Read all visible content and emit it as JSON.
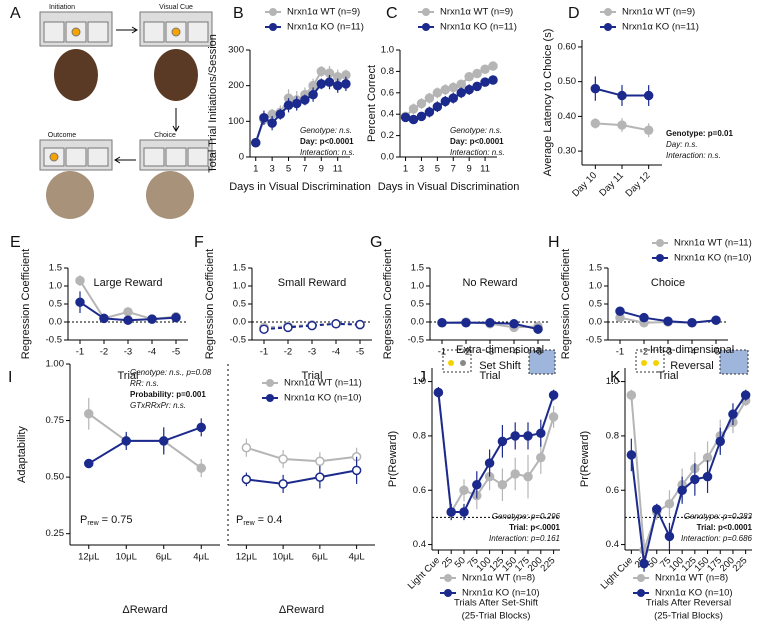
{
  "diagram": {
    "panel": "A",
    "labels": [
      "Initiation",
      "Visual Cue",
      "Outcome",
      "Choice"
    ]
  },
  "chart_data": [
    {
      "type": "line",
      "panel": "B",
      "ylabel": "Total Trial Initiations/Session",
      "xlabel": "Days in Visual Discrimination",
      "x": [
        1,
        2,
        3,
        4,
        5,
        6,
        7,
        8,
        9,
        10,
        11,
        12
      ],
      "xlim": [
        0.3,
        12.5
      ],
      "xticks": [
        1,
        3,
        5,
        7,
        9,
        11
      ],
      "ylim": [
        0,
        300
      ],
      "yticks": [
        0,
        100,
        200,
        300
      ],
      "series": [
        {
          "name": "Nrxn1α WT (n=9)",
          "color": "#b5b5b5",
          "values": [
            40,
            105,
            120,
            125,
            165,
            160,
            175,
            200,
            240,
            235,
            225,
            230
          ],
          "errors": [
            8,
            15,
            15,
            20,
            25,
            25,
            20,
            20,
            15,
            20,
            20,
            15
          ]
        },
        {
          "name": "Nrxn1α KO (n=11)",
          "color": "#1b2a8c",
          "values": [
            40,
            110,
            95,
            120,
            145,
            150,
            160,
            175,
            205,
            210,
            200,
            205
          ],
          "errors": [
            8,
            20,
            20,
            15,
            20,
            20,
            15,
            20,
            15,
            20,
            20,
            20
          ]
        }
      ],
      "stats": [
        {
          "text": "Genotype: n.s."
        },
        {
          "text": "Day: p<0.0001",
          "bold": true
        },
        {
          "text": "Interaction: n.s."
        }
      ]
    },
    {
      "type": "line",
      "panel": "C",
      "ylabel": "Percent Correct",
      "xlabel": "Days in Visual Discrimination",
      "x": [
        1,
        2,
        3,
        4,
        5,
        6,
        7,
        8,
        9,
        10,
        11,
        12
      ],
      "xlim": [
        0.3,
        12.5
      ],
      "xticks": [
        1,
        3,
        5,
        7,
        9,
        11
      ],
      "ylim": [
        0,
        1
      ],
      "yticks": [
        {
          "value": 0,
          "label": "0.0"
        },
        0.2,
        0.4,
        0.6,
        0.8,
        {
          "value": 1,
          "label": "1.0"
        }
      ],
      "series": [
        {
          "name": "Nrxn1α WT (n=9)",
          "color": "#b5b5b5",
          "values": [
            0.38,
            0.45,
            0.5,
            0.55,
            0.6,
            0.63,
            0.65,
            0.68,
            0.75,
            0.78,
            0.82,
            0.85
          ],
          "errors": [
            0.04,
            0.05,
            0.05,
            0.05,
            0.05,
            0.05,
            0.05,
            0.04,
            0.04,
            0.03,
            0.03,
            0.02
          ]
        },
        {
          "name": "Nrxn1α KO (n=11)",
          "color": "#1b2a8c",
          "values": [
            0.37,
            0.35,
            0.38,
            0.42,
            0.47,
            0.52,
            0.55,
            0.6,
            0.63,
            0.66,
            0.7,
            0.72
          ],
          "errors": [
            0.04,
            0.04,
            0.04,
            0.05,
            0.05,
            0.05,
            0.05,
            0.05,
            0.05,
            0.04,
            0.04,
            0.04
          ]
        }
      ],
      "stats": [
        {
          "text": "Genotype: n.s."
        },
        {
          "text": "Day: p<0.0001",
          "bold": true
        },
        {
          "text": "Interaction: n.s."
        }
      ]
    },
    {
      "type": "line",
      "panel": "D",
      "ylabel": "Average Latency to Choice (s)",
      "categories": [
        "Day 10",
        "Day 11",
        "Day 12"
      ],
      "rotated_xlabels": true,
      "ylim": [
        0.26,
        0.62
      ],
      "yticks": [
        {
          "value": 0.3,
          "label": "0.30"
        },
        {
          "value": 0.4,
          "label": "0.40"
        },
        {
          "value": 0.5,
          "label": "0.50"
        },
        {
          "value": 0.6,
          "label": "0.60"
        }
      ],
      "series": [
        {
          "name": "Nrxn1α WT (n=9)",
          "color": "#b5b5b5",
          "values": [
            0.38,
            0.375,
            0.36
          ],
          "errors": [
            0.015,
            0.02,
            0.02
          ]
        },
        {
          "name": "Nrxn1α KO (n=11)",
          "color": "#1b2a8c",
          "values": [
            0.48,
            0.46,
            0.46
          ],
          "errors": [
            0.035,
            0.03,
            0.03
          ]
        }
      ],
      "stats": [
        {
          "text": "Genotype: p=0.01",
          "bold": true
        },
        {
          "text": "Day: n.s."
        },
        {
          "text": "Interaction: n.s."
        }
      ]
    },
    {
      "type": "line",
      "panel": "E",
      "title": "Large Reward",
      "ylabel": "Regression Coefficient",
      "xlabel": "Trial",
      "categories": [
        "-1",
        "-2",
        "-3",
        "-4",
        "-5"
      ],
      "ylim": [
        -0.5,
        1.5
      ],
      "yticks": [
        -0.5,
        {
          "value": 0,
          "label": "0.0"
        },
        0.5,
        {
          "value": 1,
          "label": "1.0"
        },
        1.5
      ],
      "ref_line": 0,
      "series": [
        {
          "color": "#b5b5b5",
          "values": [
            1.15,
            0.1,
            0.28,
            0.08,
            0.15
          ],
          "errors": [
            0.15,
            0.05,
            0.08,
            0.05,
            0.05
          ]
        },
        {
          "color": "#1b2a8c",
          "values": [
            0.55,
            0.1,
            0.05,
            0.08,
            0.12
          ],
          "errors": [
            0.3,
            0.05,
            0.05,
            0.05,
            0.05
          ]
        }
      ]
    },
    {
      "type": "line",
      "panel": "F",
      "title": "Small Reward",
      "ylabel": "Regression Coefficient",
      "xlabel": "Trial",
      "categories": [
        "-1",
        "-2",
        "-3",
        "-4",
        "-5"
      ],
      "ylim": [
        -0.5,
        1.5
      ],
      "yticks": [
        -0.5,
        {
          "value": 0,
          "label": "0.0"
        },
        0.5,
        {
          "value": 1,
          "label": "1.0"
        },
        1.5
      ],
      "ref_line": 0,
      "line_style": "dashed",
      "marker": "open",
      "series": [
        {
          "color": "#b5b5b5",
          "values": [
            -0.15,
            -0.12,
            -0.08,
            -0.05,
            -0.08
          ],
          "errors": [
            0.05,
            0.05,
            0.05,
            0.04,
            0.04
          ]
        },
        {
          "color": "#1b2a8c",
          "values": [
            -0.2,
            -0.15,
            -0.1,
            -0.05,
            -0.07
          ],
          "errors": [
            0.05,
            0.05,
            0.05,
            0.04,
            0.04
          ]
        }
      ]
    },
    {
      "type": "line",
      "panel": "G",
      "title": "No Reward",
      "ylabel": "Regression Coefficient",
      "xlabel": "Trial",
      "categories": [
        "-1",
        "-2",
        "-3",
        "-4",
        "-5"
      ],
      "ylim": [
        -0.5,
        1.5
      ],
      "yticks": [
        -0.5,
        {
          "value": 0,
          "label": "0.0"
        },
        0.5,
        {
          "value": 1,
          "label": "1.0"
        },
        1.5
      ],
      "ref_line": 0,
      "series": [
        {
          "color": "#b5b5b5",
          "values": [
            -0.02,
            0.0,
            -0.05,
            -0.15,
            -0.12
          ],
          "errors": [
            0.05,
            0.05,
            0.05,
            0.06,
            0.05
          ]
        },
        {
          "color": "#1b2a8c",
          "values": [
            -0.02,
            -0.02,
            -0.02,
            -0.05,
            -0.2
          ],
          "errors": [
            0.04,
            0.04,
            0.04,
            0.05,
            0.06
          ]
        }
      ]
    },
    {
      "type": "line",
      "panel": "H",
      "title": "Choice",
      "ylabel": "Regression Coefficient",
      "xlabel": "Trial",
      "categories": [
        "-1",
        "-2",
        "-3",
        "-4",
        "-5"
      ],
      "ylim": [
        -0.5,
        1.5
      ],
      "yticks": [
        -0.5,
        {
          "value": 0,
          "label": "0.0"
        },
        0.5,
        {
          "value": 1,
          "label": "1.0"
        },
        1.5
      ],
      "ref_line": 0,
      "series": [
        {
          "name": "Nrxn1α WT (n=11)",
          "color": "#b5b5b5",
          "values": [
            0.12,
            -0.02,
            0.0,
            -0.02,
            0.05
          ],
          "errors": [
            0.05,
            0.04,
            0.04,
            0.04,
            0.03
          ]
        },
        {
          "name": "Nrxn1α KO (n=10)",
          "color": "#1b2a8c",
          "values": [
            0.3,
            0.12,
            0.02,
            -0.02,
            0.05
          ],
          "errors": [
            0.08,
            0.04,
            0.04,
            0.04,
            0.03
          ]
        }
      ]
    },
    {
      "type": "line",
      "panel": "I",
      "ylabel": "Adaptability",
      "xlabel": "ΔReward",
      "categories": [
        "12μL",
        "10μL",
        "6μL",
        "4μL"
      ],
      "ylim": [
        0.2,
        1.0
      ],
      "yticks": [
        0.25,
        {
          "value": 0.5,
          "label": "0.50"
        },
        0.75,
        {
          "value": 1,
          "label": "1.00"
        }
      ],
      "prob": [
        "P",
        "rew",
        "= 0.75"
      ],
      "series": [
        {
          "name": "Nrxn1α WT (n=11)",
          "color": "#b5b5b5",
          "values": [
            0.78,
            0.66,
            0.66,
            0.54
          ],
          "errors": [
            0.07,
            0.03,
            0.05,
            0.04
          ]
        },
        {
          "name": "Nrxn1α KO (n=10)",
          "color": "#1b2a8c",
          "values": [
            0.56,
            0.66,
            0.66,
            0.72
          ],
          "errors": [
            0.02,
            0.04,
            0.06,
            0.04
          ]
        }
      ],
      "stats": [
        {
          "text": "Genotype: n.s., p=0.08"
        },
        {
          "text": "RR: n.s."
        },
        {
          "text": "Probability: p=0.001",
          "bold": true
        },
        {
          "text": "GTxRRxPr: n.s."
        }
      ]
    },
    {
      "type": "line",
      "xlabel": "ΔReward",
      "categories": [
        "12μL",
        "10μL",
        "6μL",
        "4μL"
      ],
      "ylim": [
        0.2,
        1.0
      ],
      "marker": "open",
      "prob": [
        "P",
        "rew",
        "= 0.4"
      ],
      "series": [
        {
          "color": "#b5b5b5",
          "values": [
            0.63,
            0.58,
            0.57,
            0.59
          ],
          "errors": [
            0.04,
            0.04,
            0.04,
            0.04
          ]
        },
        {
          "color": "#1b2a8c",
          "values": [
            0.49,
            0.47,
            0.5,
            0.53
          ],
          "errors": [
            0.03,
            0.04,
            0.05,
            0.06
          ]
        }
      ]
    },
    {
      "type": "line",
      "panel": "J",
      "title": [
        "Extra-dimensional",
        "Set Shift"
      ],
      "ylabel": "Pr(Reward)",
      "xlabel": [
        "Trials After Set-Shift",
        "(25-Trial Blocks)"
      ],
      "categories": [
        "Light Cue",
        "25",
        "50",
        "75",
        "100",
        "125",
        "150",
        "175",
        "200",
        "225"
      ],
      "rotated_xlabels": true,
      "ylim": [
        0.38,
        1.05
      ],
      "yticks": [
        0.4,
        0.6,
        0.8,
        {
          "value": 1,
          "label": "1.0"
        }
      ],
      "ref_line": 0.5,
      "series": [
        {
          "name": "Nrxn1α WT (n=8)",
          "color": "#b5b5b5",
          "values": [
            0.96,
            0.52,
            0.6,
            0.58,
            0.65,
            0.62,
            0.66,
            0.65,
            0.72,
            0.87
          ],
          "errors": [
            0.02,
            0.03,
            0.04,
            0.05,
            0.05,
            0.06,
            0.06,
            0.08,
            0.06,
            0.04
          ]
        },
        {
          "name": "Nrxn1α KO (n=10)",
          "color": "#1b2a8c",
          "values": [
            0.96,
            0.52,
            0.52,
            0.62,
            0.7,
            0.78,
            0.8,
            0.8,
            0.81,
            0.95
          ],
          "errors": [
            0.02,
            0.03,
            0.03,
            0.05,
            0.05,
            0.06,
            0.05,
            0.05,
            0.05,
            0.02
          ]
        }
      ],
      "stats": [
        {
          "text": "Genotype: p=0.296"
        },
        {
          "text": "Trial: p<.0001",
          "bold": true
        },
        {
          "text": "Interaction: p=0.161"
        }
      ]
    },
    {
      "type": "line",
      "panel": "K",
      "title": [
        "Intra-dimensional",
        "Reversal"
      ],
      "ylabel": "Pr(Reward)",
      "xlabel": [
        "Trials After Reversal",
        "(25-Trial Blocks)"
      ],
      "categories": [
        "Light Cue",
        "25",
        "50",
        "75",
        "100",
        "125",
        "150",
        "175",
        "200",
        "225"
      ],
      "rotated_xlabels": true,
      "ylim": [
        0.38,
        1.05
      ],
      "yticks": [
        0.4,
        0.6,
        0.8,
        {
          "value": 1,
          "label": "1.0"
        }
      ],
      "ref_line": 0.5,
      "series": [
        {
          "name": "Nrxn1α WT (n=8)",
          "color": "#b5b5b5",
          "values": [
            0.95,
            0.38,
            0.52,
            0.55,
            0.62,
            0.68,
            0.72,
            0.8,
            0.85,
            0.93
          ],
          "errors": [
            0.02,
            0.04,
            0.03,
            0.05,
            0.06,
            0.06,
            0.06,
            0.06,
            0.04,
            0.02
          ]
        },
        {
          "name": "Nrxn1α KO (n=10)",
          "color": "#1b2a8c",
          "values": [
            0.73,
            0.33,
            0.53,
            0.43,
            0.6,
            0.64,
            0.65,
            0.78,
            0.88,
            0.95
          ],
          "errors": [
            0.06,
            0.03,
            0.02,
            0.05,
            0.05,
            0.06,
            0.06,
            0.05,
            0.04,
            0.02
          ]
        }
      ],
      "stats": [
        {
          "text": "Genotype: p=0.283"
        },
        {
          "text": "Trial: p<0.0001",
          "bold": true
        },
        {
          "text": "Interaction: p=0.686"
        }
      ]
    }
  ]
}
